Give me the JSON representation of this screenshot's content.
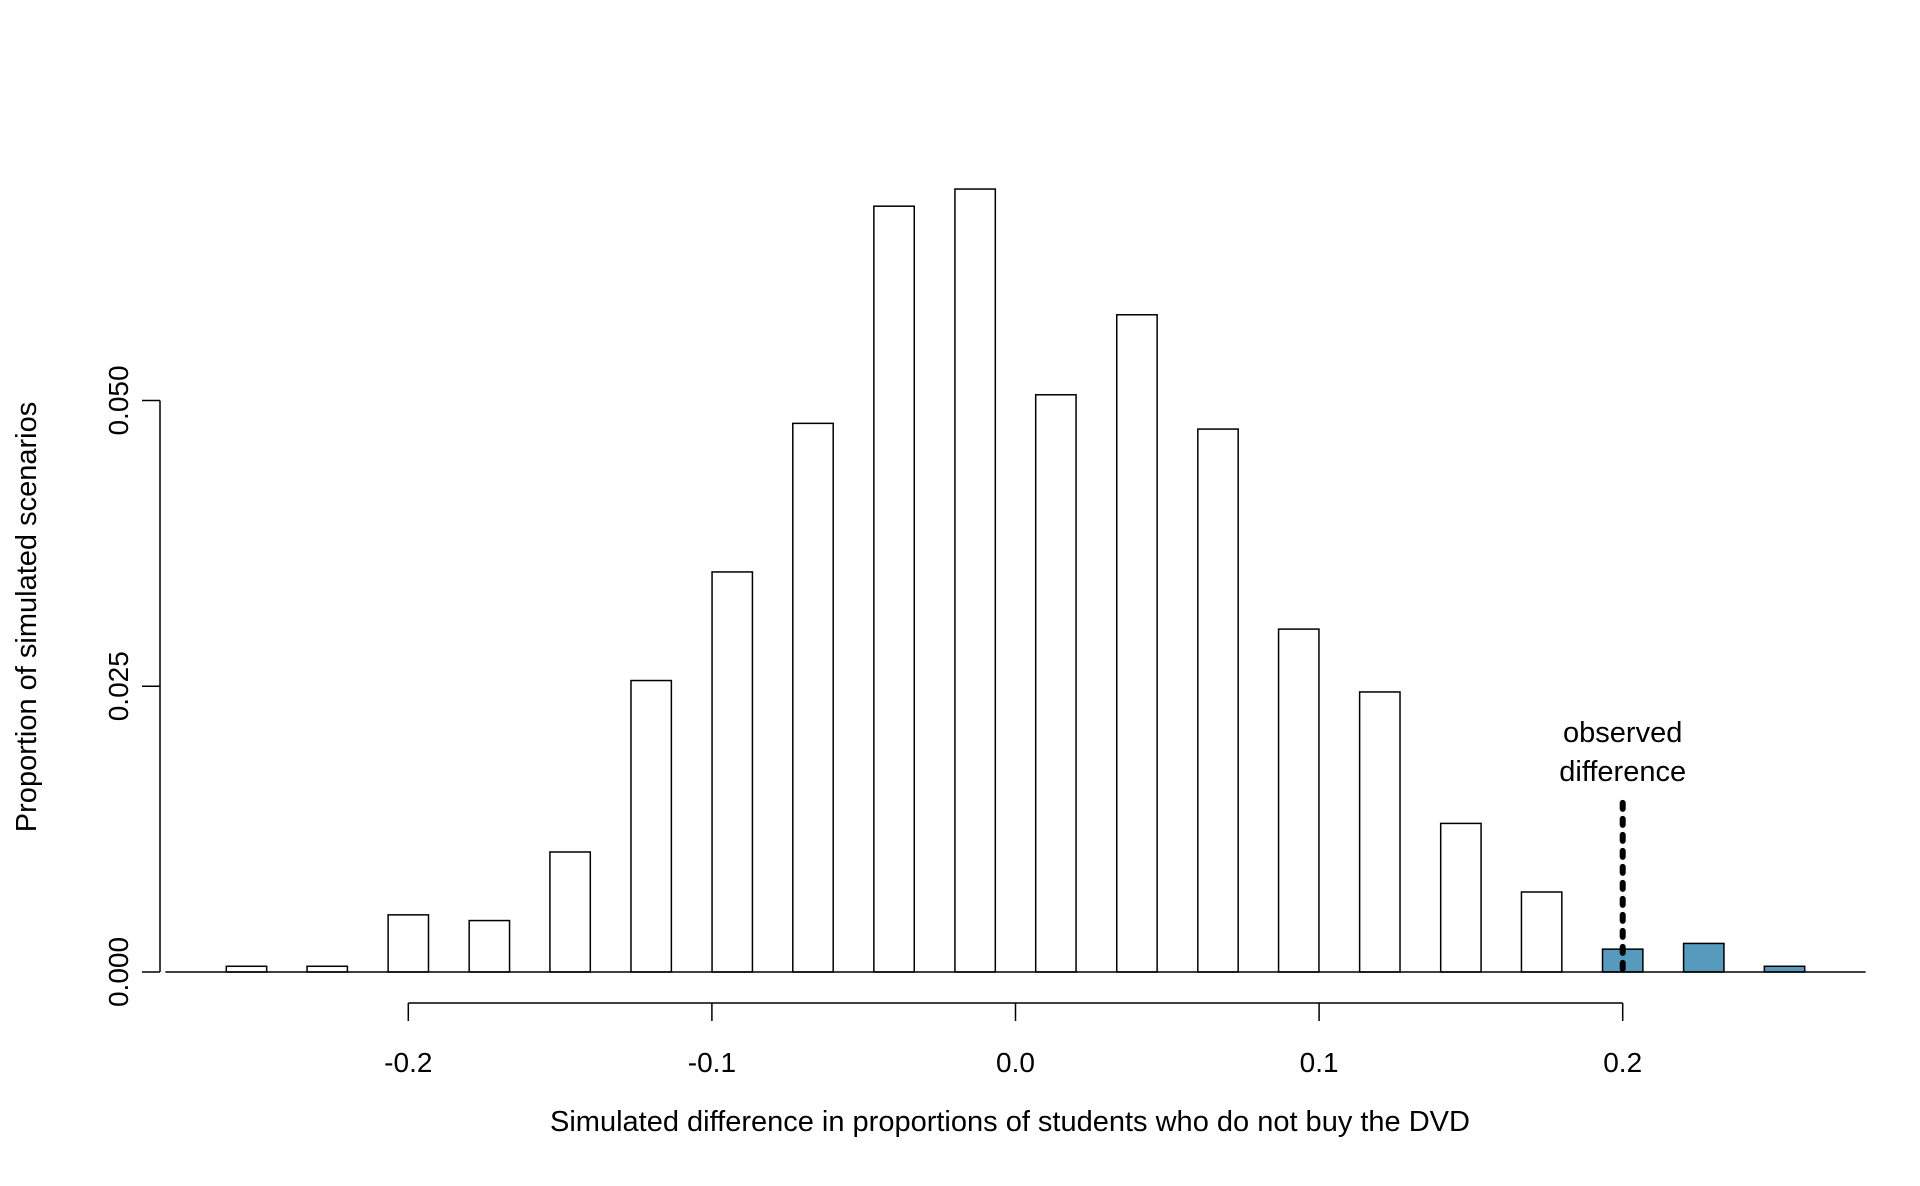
{
  "chart_data": {
    "type": "bar",
    "subtype": "histogram",
    "title": "",
    "xlabel": "Simulated difference in proportions of students who do not buy the DVD",
    "ylabel": "Proportion of simulated scenarios",
    "xlim": [
      -0.28,
      0.28
    ],
    "ylim": [
      0,
      0.07
    ],
    "x_ticks": [
      -0.2,
      -0.1,
      0.0,
      0.1,
      0.2
    ],
    "x_tick_labels": [
      "-0.2",
      "-0.1",
      "0.0",
      "0.1",
      "0.2"
    ],
    "y_ticks": [
      0,
      0.025,
      0.05
    ],
    "y_tick_labels": [
      "0.000",
      "0.025",
      "0.050"
    ],
    "bar_width": 0.0133,
    "x": [
      -0.2533,
      -0.2267,
      -0.2,
      -0.1733,
      -0.1467,
      -0.12,
      -0.0933,
      -0.0667,
      -0.04,
      -0.0133,
      0.0133,
      0.04,
      0.0667,
      0.0933,
      0.12,
      0.1467,
      0.1733,
      0.2,
      0.2267,
      0.2533
    ],
    "values": [
      0.0005,
      0.0005,
      0.005,
      0.0045,
      0.0105,
      0.0255,
      0.035,
      0.048,
      0.067,
      0.0685,
      0.0505,
      0.0575,
      0.0475,
      0.03,
      0.0245,
      0.013,
      0.007,
      0.002,
      0.0025,
      0.0005
    ],
    "highlight_threshold": 0.2,
    "colors": {
      "highlight": "#569BBD",
      "default": "#FFFFFF",
      "stroke": "#000000"
    },
    "grid": false,
    "legend": "none",
    "annotation": {
      "lines": [
        "observed",
        "difference"
      ],
      "x": 0.2,
      "y_from": 0.0,
      "y_to": 0.0148
    }
  }
}
